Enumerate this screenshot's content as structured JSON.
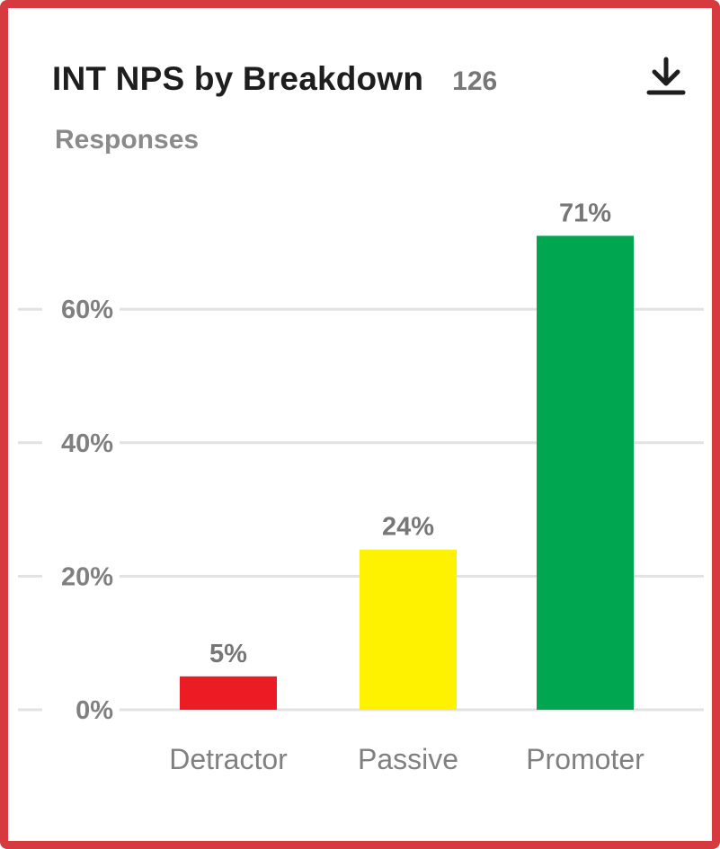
{
  "widget": {
    "title": "INT NPS by Breakdown",
    "count": "126",
    "subtitle": "Responses",
    "download_icon": "download-icon",
    "border_color": "#d63a3f"
  },
  "chart_data": {
    "type": "bar",
    "title": "INT NPS by Breakdown",
    "xlabel": "",
    "ylabel": "",
    "categories": [
      "Detractor",
      "Passive",
      "Promoter"
    ],
    "values": [
      5,
      24,
      71
    ],
    "value_labels": [
      "5%",
      "24%",
      "71%"
    ],
    "colors": [
      "#ec1c24",
      "#fff200",
      "#00a650"
    ],
    "ylim": [
      0,
      70
    ],
    "yticks": [
      0,
      20,
      40,
      60
    ],
    "ytick_labels": [
      "0%",
      "20%",
      "40%",
      "60%"
    ],
    "grid": true,
    "legend": "none"
  }
}
